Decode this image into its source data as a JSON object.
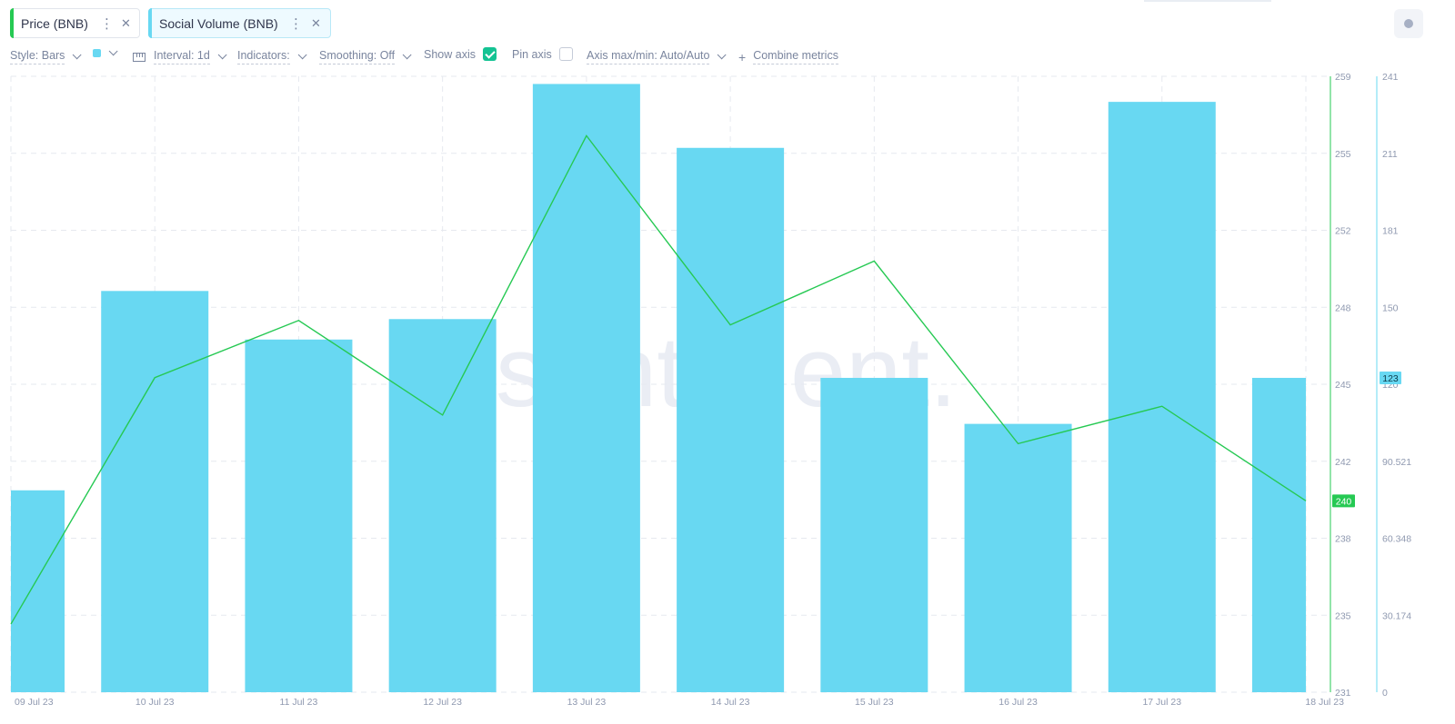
{
  "tabs": [
    {
      "label": "Price (BNB)",
      "color": "#26c953"
    },
    {
      "label": "Social Volume (BNB)",
      "color": "#68d8f2"
    }
  ],
  "toolbar": {
    "style": "Style: Bars",
    "swatch_color": "#68d8f2",
    "interval": "Interval: 1d",
    "indicators": "Indicators:",
    "smoothing": "Smoothing: Off",
    "show_axis": "Show axis",
    "pin_axis": "Pin axis",
    "axis_maxmin": "Axis max/min: Auto/Auto",
    "combine": "Combine metrics"
  },
  "watermark": "santiment.",
  "chart_data": {
    "type": "bar",
    "dates": [
      "09 Jul 23",
      "10 Jul 23",
      "11 Jul 23",
      "12 Jul 23",
      "13 Jul 23",
      "14 Jul 23",
      "15 Jul 23",
      "16 Jul 23",
      "17 Jul 23",
      "18 Jul 23"
    ],
    "series": [
      {
        "name": "Social Volume (BNB)",
        "type": "bar",
        "color": "#68d8f2",
        "axis": "right",
        "values": [
          79,
          157,
          138,
          146,
          238,
          213,
          123,
          105,
          231,
          123
        ]
      },
      {
        "name": "Price (BNB)",
        "type": "line",
        "color": "#26c953",
        "axis": "left",
        "values": [
          234.1,
          245.3,
          247.9,
          243.6,
          256.3,
          247.7,
          250.6,
          242.3,
          244.0,
          239.7
        ]
      }
    ],
    "price_axis": {
      "ylim": [
        231,
        259
      ],
      "ticks": [
        "259",
        "255",
        "252",
        "248",
        "245",
        "242",
        "238",
        "235",
        "231"
      ]
    },
    "volume_axis": {
      "ylim": [
        0,
        241
      ],
      "ticks": [
        "241",
        "211",
        "181",
        "150",
        "120",
        "90.521",
        "60.348",
        "30.174",
        "0"
      ]
    },
    "last_price_label": "240",
    "last_volume_label": "123",
    "grid": true
  }
}
